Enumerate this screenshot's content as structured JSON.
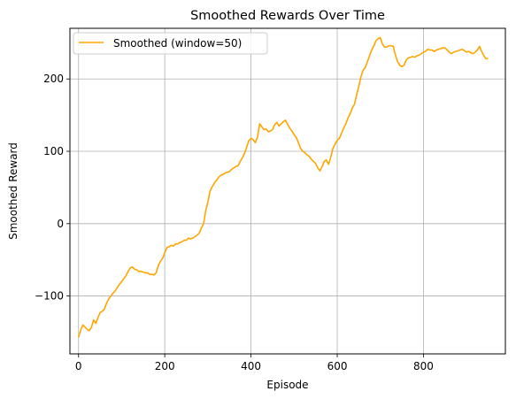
{
  "chart_data": {
    "type": "line",
    "title": "Smoothed Rewards Over Time",
    "xlabel": "Episode",
    "ylabel": "Smoothed Reward",
    "xlim": [
      -20,
      990
    ],
    "ylim": [
      -180,
      270
    ],
    "xticks": [
      0,
      200,
      400,
      600,
      800
    ],
    "yticks": [
      -100,
      0,
      100,
      200
    ],
    "ytick_labels": [
      "−100",
      "0",
      "100",
      "200"
    ],
    "grid": true,
    "legend_position": "top-left",
    "series": [
      {
        "name": "Smoothed (window=50)",
        "color": "#ffa500",
        "x": [
          0,
          5,
          10,
          15,
          20,
          25,
          30,
          35,
          40,
          45,
          50,
          55,
          60,
          65,
          70,
          75,
          80,
          85,
          90,
          95,
          100,
          105,
          110,
          115,
          120,
          125,
          130,
          135,
          140,
          145,
          150,
          155,
          160,
          165,
          170,
          175,
          180,
          185,
          190,
          195,
          200,
          205,
          210,
          215,
          220,
          225,
          230,
          235,
          240,
          245,
          250,
          255,
          260,
          265,
          270,
          275,
          280,
          285,
          290,
          295,
          300,
          305,
          310,
          315,
          320,
          325,
          330,
          335,
          340,
          345,
          350,
          355,
          360,
          365,
          370,
          375,
          380,
          385,
          390,
          395,
          400,
          405,
          410,
          415,
          420,
          425,
          430,
          435,
          440,
          445,
          450,
          455,
          460,
          465,
          470,
          475,
          480,
          485,
          490,
          495,
          500,
          505,
          510,
          515,
          520,
          525,
          530,
          535,
          540,
          545,
          550,
          555,
          560,
          565,
          570,
          575,
          580,
          585,
          590,
          595,
          600,
          605,
          610,
          615,
          620,
          625,
          630,
          635,
          640,
          645,
          650,
          655,
          660,
          665,
          670,
          675,
          680,
          685,
          690,
          695,
          700,
          705,
          710,
          715,
          720,
          725,
          730,
          735,
          740,
          745,
          750,
          755,
          760,
          765,
          770,
          775,
          780,
          785,
          790,
          795,
          800,
          805,
          810,
          815,
          820,
          825,
          830,
          835,
          840,
          845,
          850,
          855,
          860,
          865,
          870,
          875,
          880,
          885,
          890,
          895,
          900,
          905,
          910,
          915,
          920,
          925,
          930,
          935,
          940,
          945,
          950
        ],
        "y": [
          -157,
          -147,
          -140,
          -143,
          -146,
          -148,
          -143,
          -133,
          -138,
          -130,
          -123,
          -121,
          -118,
          -110,
          -104,
          -100,
          -96,
          -93,
          -88,
          -84,
          -80,
          -76,
          -72,
          -66,
          -61,
          -60,
          -63,
          -64,
          -66,
          -66,
          -67,
          -68,
          -68,
          -70,
          -70,
          -71,
          -68,
          -58,
          -52,
          -48,
          -40,
          -33,
          -32,
          -30,
          -31,
          -28,
          -28,
          -26,
          -25,
          -23,
          -23,
          -20,
          -21,
          -20,
          -18,
          -16,
          -13,
          -6,
          0,
          18,
          30,
          45,
          51,
          56,
          60,
          64,
          67,
          68,
          70,
          71,
          72,
          75,
          77,
          79,
          80,
          86,
          91,
          97,
          106,
          115,
          118,
          116,
          112,
          119,
          138,
          134,
          130,
          131,
          127,
          128,
          130,
          137,
          140,
          135,
          138,
          141,
          143,
          137,
          132,
          128,
          123,
          119,
          112,
          104,
          100,
          98,
          95,
          93,
          89,
          86,
          83,
          77,
          73,
          79,
          86,
          88,
          82,
          92,
          104,
          110,
          115,
          118,
          125,
          132,
          138,
          146,
          152,
          160,
          165,
          178,
          190,
          203,
          212,
          216,
          224,
          232,
          240,
          246,
          253,
          256,
          257,
          248,
          244,
          244,
          246,
          246,
          245,
          233,
          224,
          219,
          217,
          219,
          226,
          229,
          230,
          231,
          230,
          232,
          233,
          235,
          237,
          238,
          241,
          240,
          240,
          238,
          240,
          241,
          242,
          243,
          243,
          240,
          237,
          235,
          237,
          238,
          239,
          240,
          241,
          239,
          237,
          238,
          236,
          235,
          237,
          240,
          245,
          238,
          232,
          228,
          228
        ]
      }
    ]
  }
}
